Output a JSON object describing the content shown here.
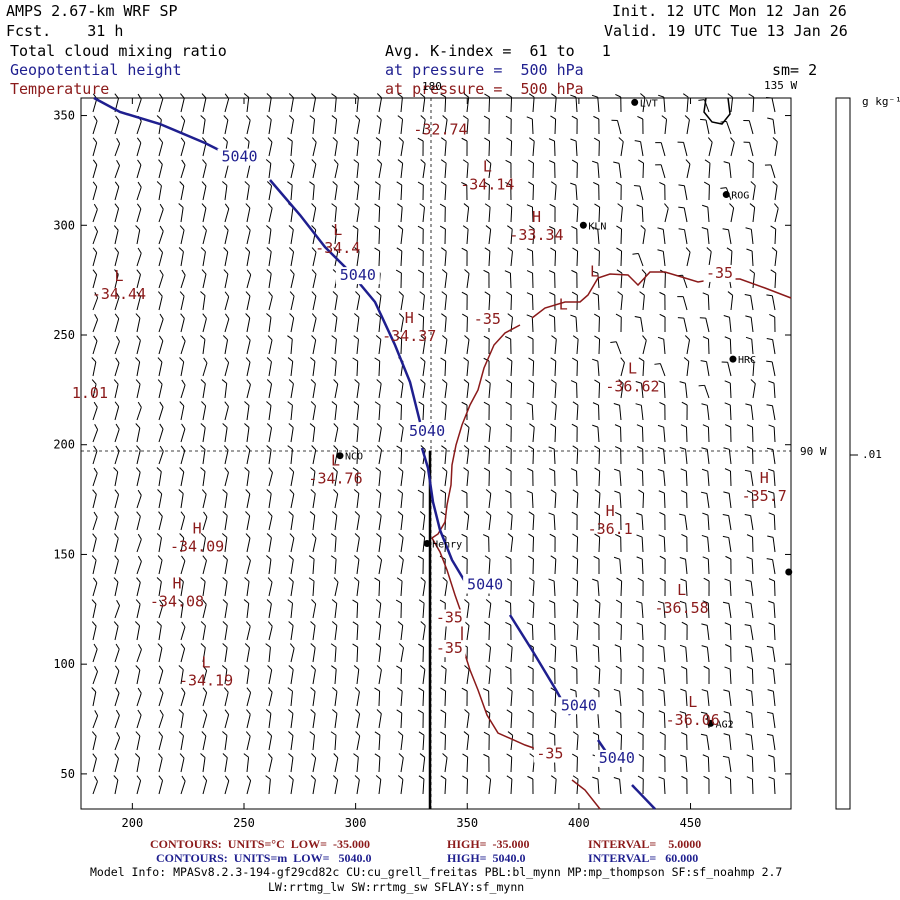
{
  "header": {
    "model": "AMPS 2.67-km WRF SP",
    "forecast": "Fcst.    31 h",
    "init": "Init. 12 UTC Mon 12 Jan 26",
    "valid": "Valid. 19 UTC Tue 13 Jan 26",
    "field1": "Total cloud mixing ratio",
    "field2": "Geopotential height",
    "field3": "Temperature",
    "avg": "Avg. K-index =  61 to   1",
    "pressure1": "at pressure =  500 hPa",
    "pressure2": "at pressure =  500 hPa",
    "smoothing": "sm= 2"
  },
  "colorbar": {
    "unit": "g kg⁻¹",
    "tick": ".01"
  },
  "map_labels": {
    "lon180": "180",
    "lon135": "135 W",
    "lon90": "90 W"
  },
  "axes": {
    "x_ticks": [
      200,
      250,
      300,
      350,
      400,
      450
    ],
    "y_ticks": [
      50,
      100,
      150,
      200,
      250,
      300,
      350
    ],
    "x_range": [
      177,
      495
    ],
    "y_range": [
      34,
      358
    ]
  },
  "stations": [
    {
      "name": "LVT",
      "x": 425,
      "y": 356
    },
    {
      "name": "ROG",
      "x": 466,
      "y": 314
    },
    {
      "name": "KLN",
      "x": 402,
      "y": 300
    },
    {
      "name": "HRC",
      "x": 469,
      "y": 239
    },
    {
      "name": "NCO",
      "x": 293,
      "y": 195
    },
    {
      "name": "Henry",
      "x": 332,
      "y": 155
    },
    {
      "name": "AG2",
      "x": 459,
      "y": 73
    },
    {
      "name": "",
      "x": 494,
      "y": 142
    }
  ],
  "temp_extrema": [
    {
      "mark": "",
      "value": "-32.74",
      "x": 338,
      "y": 345
    },
    {
      "mark": "L",
      "value": "-34.14",
      "x": 359,
      "y": 320
    },
    {
      "mark": "H",
      "value": "-33.34",
      "x": 381,
      "y": 297
    },
    {
      "mark": "L",
      "value": "-34.4",
      "x": 292,
      "y": 291
    },
    {
      "mark": "L",
      "value": "-34.44",
      "x": 194,
      "y": 270
    },
    {
      "mark": "H",
      "value": "-34.37",
      "x": 324,
      "y": 251
    },
    {
      "mark": "L",
      "value": "",
      "x": 407,
      "y": 272
    },
    {
      "mark": "L",
      "value": "",
      "x": 393,
      "y": 257
    },
    {
      "mark": "L",
      "value": "-36.62",
      "x": 424,
      "y": 228
    },
    {
      "mark": "",
      "value": "1.01",
      "x": 181,
      "y": 225
    },
    {
      "mark": "L",
      "value": "-34.76",
      "x": 291,
      "y": 186
    },
    {
      "mark": "H",
      "value": "-36.1",
      "x": 414,
      "y": 163
    },
    {
      "mark": "H",
      "value": "-35.7",
      "x": 483,
      "y": 178
    },
    {
      "mark": "H",
      "value": "-34.09",
      "x": 229,
      "y": 155
    },
    {
      "mark": "H",
      "value": "-34.08",
      "x": 220,
      "y": 130
    },
    {
      "mark": "L",
      "value": "-36.58",
      "x": 446,
      "y": 127
    },
    {
      "mark": "L",
      "value": "-34.19",
      "x": 233,
      "y": 94
    },
    {
      "mark": "L",
      "value": "-36.06",
      "x": 451,
      "y": 76
    }
  ],
  "contour_labels": {
    "height": [
      {
        "text": "5040",
        "x": 248,
        "y": 329
      },
      {
        "text": "5040",
        "x": 301,
        "y": 275
      },
      {
        "text": "5040",
        "x": 332,
        "y": 204
      },
      {
        "text": "5040",
        "x": 358,
        "y": 134
      },
      {
        "text": "5040",
        "x": 400,
        "y": 79
      },
      {
        "text": "5040",
        "x": 417,
        "y": 55
      }
    ],
    "temp": [
      {
        "text": "-35",
        "x": 463,
        "y": 276
      },
      {
        "text": "-35",
        "x": 359,
        "y": 255
      },
      {
        "text": "-35",
        "x": 342,
        "y": 119
      },
      {
        "text": "-35",
        "x": 342,
        "y": 105
      },
      {
        "text": "-35",
        "x": 387,
        "y": 57
      }
    ]
  },
  "footer": {
    "temp_contours": "CONTOURS:  UNITS=°C  LOW=  -35.000",
    "temp_high": "HIGH=  -35.000",
    "temp_interval": "INTERVAL=    5.0000",
    "hgt_contours": "CONTOURS:  UNITS=m  LOW=   5040.0",
    "hgt_high": "HIGH=  5040.0",
    "hgt_interval": "INTERVAL=   60.000",
    "info1": "Model Info: MPASv8.2.3-194-gf29cd82c CU:cu_grell_freitas PBL:bl_mynn MP:mp_thompson SF:sf_noahmp 2.7",
    "info2": "LW:rrtmg_lw SW:rrtmg_sw SFLAY:sf_mynn"
  },
  "colors": {
    "height": "#1f1f8f",
    "temperature": "#8b1a1a",
    "axis": "#000000"
  }
}
